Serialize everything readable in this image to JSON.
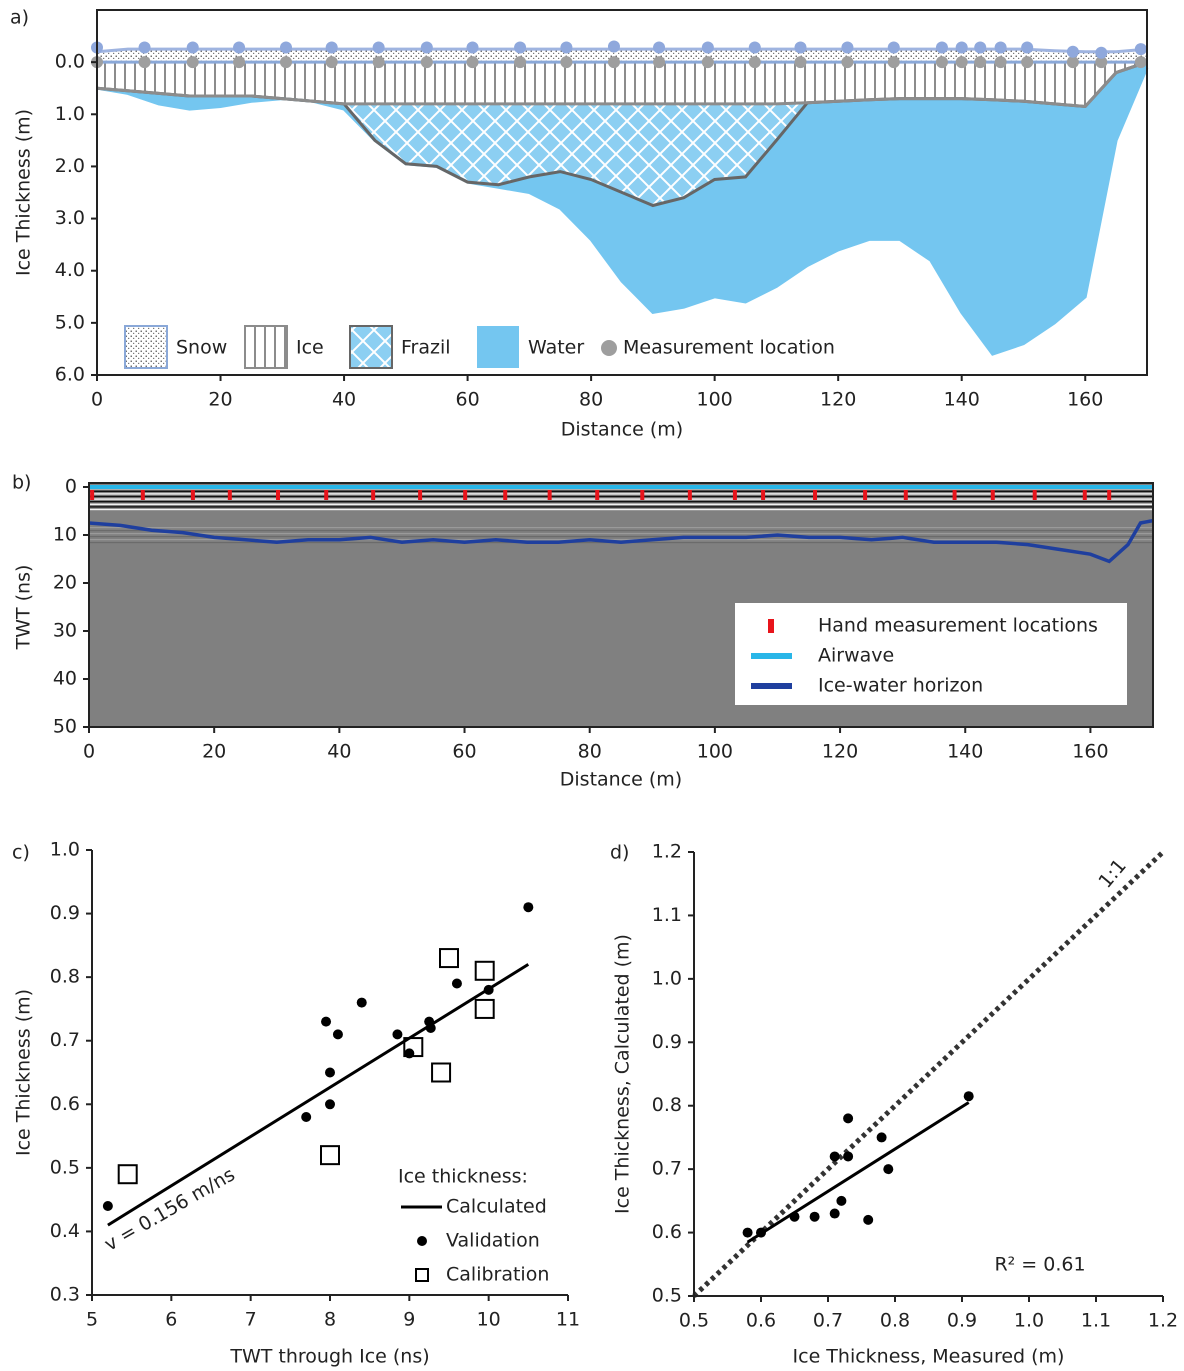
{
  "chart_data": [
    {
      "type": "area",
      "panel": "a)",
      "xlabel": "Distance (m)",
      "ylabel": "Ice Thickness (m)",
      "y_inverted": true,
      "xlim": [
        0,
        170
      ],
      "ylim": [
        -1,
        6
      ],
      "xticks": [
        0,
        20,
        40,
        60,
        80,
        100,
        120,
        140,
        160
      ],
      "yticks": [
        {
          "value": 0,
          "label": "0.0"
        },
        {
          "value": 1,
          "label": "1.0"
        },
        {
          "value": 2,
          "label": "2.0"
        },
        {
          "value": 3,
          "label": "3.0"
        },
        {
          "value": 4,
          "label": "4.0"
        },
        {
          "value": 5,
          "label": "5.0"
        },
        {
          "value": 6,
          "label": "6.0"
        }
      ],
      "x": [
        0,
        5,
        10,
        15,
        20,
        25,
        30,
        35,
        40,
        45,
        50,
        55,
        60,
        65,
        70,
        75,
        80,
        85,
        90,
        95,
        100,
        105,
        110,
        115,
        120,
        125,
        130,
        135,
        140,
        145,
        150,
        155,
        160,
        165,
        170
      ],
      "surface": [
        -0.2,
        -0.25,
        -0.25,
        -0.25,
        -0.25,
        -0.25,
        -0.25,
        -0.25,
        -0.25,
        -0.25,
        -0.25,
        -0.25,
        -0.25,
        -0.25,
        -0.25,
        -0.25,
        -0.25,
        -0.25,
        -0.25,
        -0.25,
        -0.25,
        -0.25,
        -0.25,
        -0.25,
        -0.25,
        -0.25,
        -0.25,
        -0.25,
        -0.25,
        -0.25,
        -0.25,
        -0.22,
        -0.2,
        -0.2,
        -0.25
      ],
      "surface_color": "#9fb4e0",
      "series": [
        {
          "name": "Snow",
          "color": "#ffffff",
          "edge": "#8aa8d8",
          "values": [
            0,
            0,
            0,
            0,
            0,
            0,
            0,
            0,
            0,
            0,
            0,
            0,
            0,
            0,
            0,
            0,
            0,
            0,
            0,
            0,
            0,
            0,
            0,
            0,
            0,
            0,
            0,
            0,
            0,
            0,
            0,
            0,
            0,
            0,
            0
          ]
        },
        {
          "name": "Ice",
          "color": "#ffffff",
          "edge": "#8c8c8c",
          "values": [
            0.5,
            0.55,
            0.6,
            0.65,
            0.65,
            0.65,
            0.7,
            0.75,
            0.8,
            0.8,
            0.8,
            0.8,
            0.8,
            0.8,
            0.8,
            0.8,
            0.8,
            0.8,
            0.8,
            0.8,
            0.8,
            0.8,
            0.8,
            0.78,
            0.75,
            0.72,
            0.7,
            0.7,
            0.7,
            0.72,
            0.75,
            0.8,
            0.85,
            0.2,
            0.0
          ]
        },
        {
          "name": "Frazil",
          "color": "#8ccff2",
          "edge": "#666666",
          "values": [
            0.5,
            0.55,
            0.6,
            0.65,
            0.65,
            0.65,
            0.7,
            0.75,
            0.8,
            1.5,
            1.95,
            2.0,
            2.3,
            2.35,
            2.2,
            2.1,
            2.25,
            2.5,
            2.75,
            2.6,
            2.25,
            2.2,
            1.5,
            0.78,
            0.75,
            0.72,
            0.7,
            0.7,
            0.7,
            0.72,
            0.75,
            0.8,
            0.85,
            0.2,
            0.0
          ]
        },
        {
          "name": "Water",
          "color": "#74c6f0",
          "edge": "#74c6f0",
          "values": [
            0.5,
            0.6,
            0.8,
            0.9,
            0.85,
            0.75,
            0.7,
            0.75,
            0.9,
            1.5,
            1.95,
            2.0,
            2.3,
            2.4,
            2.5,
            2.8,
            3.4,
            4.2,
            4.8,
            4.7,
            4.5,
            4.6,
            4.3,
            3.9,
            3.6,
            3.4,
            3.4,
            3.8,
            4.8,
            5.6,
            5.4,
            5.0,
            4.5,
            1.5,
            0.1
          ]
        }
      ],
      "measurement": {
        "name": "Measurement location",
        "color": "#9e9e9e",
        "snow_color": "#8fa8dc",
        "x": [
          0,
          7.7,
          15.5,
          23,
          30.6,
          38,
          45.6,
          53.4,
          60.8,
          68.5,
          76,
          83.7,
          91,
          98.9,
          106.5,
          113.9,
          121.5,
          129,
          136.8,
          140,
          143,
          146.3,
          150.6,
          158,
          162.6,
          169
        ],
        "snow": [
          -0.28,
          -0.28,
          -0.28,
          -0.28,
          -0.28,
          -0.28,
          -0.28,
          -0.28,
          -0.28,
          -0.28,
          -0.28,
          -0.3,
          -0.28,
          -0.28,
          -0.28,
          -0.28,
          -0.28,
          -0.28,
          -0.28,
          -0.28,
          -0.28,
          -0.28,
          -0.28,
          -0.2,
          -0.18,
          -0.25
        ],
        "ice": [
          0,
          0,
          0,
          0,
          0,
          0,
          0,
          0,
          0,
          0,
          0,
          0,
          0,
          0,
          0,
          0,
          0,
          0,
          0,
          0,
          0,
          0,
          0,
          0,
          0,
          0
        ]
      }
    },
    {
      "type": "line",
      "panel": "b)",
      "xlabel": "Distance (m)",
      "ylabel": "TWT (ns)",
      "y_inverted": true,
      "xlim": [
        0,
        170
      ],
      "ylim": [
        0,
        50
      ],
      "xticks": [
        0,
        20,
        40,
        60,
        80,
        100,
        120,
        140,
        160
      ],
      "yticks": [
        0,
        10,
        20,
        30,
        40,
        50
      ],
      "series": [
        {
          "name": "Hand measurement locations",
          "color": "#e8141b",
          "x": [
            0.5,
            8.6,
            16.6,
            22.5,
            30.2,
            37.9,
            45.4,
            52.9,
            60.1,
            66.5,
            73.6,
            81.2,
            88.4,
            96,
            103.2,
            107.7,
            116,
            124,
            130.5,
            138.3,
            144.4,
            151.1,
            159.1,
            163
          ]
        },
        {
          "name": "Airwave",
          "color": "#29b6e8",
          "x": [
            0,
            170
          ],
          "values": [
            0,
            0
          ]
        },
        {
          "name": "Ice-water horizon",
          "color": "#1f3f9e",
          "x": [
            0,
            5,
            10,
            15,
            20,
            25,
            30,
            35,
            40,
            45,
            50,
            55,
            60,
            65,
            70,
            75,
            80,
            85,
            90,
            95,
            100,
            105,
            110,
            115,
            120,
            125,
            130,
            135,
            140,
            145,
            150,
            155,
            160,
            163,
            166,
            168,
            170
          ],
          "values": [
            7.5,
            8,
            9,
            9.5,
            10.5,
            11,
            11.5,
            11,
            11,
            10.5,
            11.5,
            11,
            11.5,
            11,
            11.5,
            11.5,
            11,
            11.5,
            11,
            10.5,
            10.5,
            10.5,
            10,
            10.5,
            10.5,
            11,
            10.5,
            11.5,
            11.5,
            11.5,
            12,
            13,
            14,
            15.5,
            12,
            7.5,
            7
          ]
        }
      ]
    },
    {
      "type": "scatter",
      "panel": "c)",
      "xlabel": "TWT through Ice (ns)",
      "ylabel": "Ice Thickness (m)",
      "xlim": [
        5,
        11
      ],
      "ylim": [
        0.3,
        1.0
      ],
      "xticks": [
        5,
        6,
        7,
        8,
        9,
        10,
        11
      ],
      "yticks": [
        0.3,
        0.4,
        0.5,
        0.6,
        0.7,
        0.8,
        0.9,
        {
          "value": 1,
          "label": "1.0"
        }
      ],
      "legend": true,
      "legend_title": "Ice thickness:",
      "annotations": [
        "v = 0.156 m/ns"
      ],
      "series": [
        {
          "name": "Calculated",
          "mode": "line",
          "color": "#000000",
          "x": [
            5.2,
            10.5
          ],
          "values": [
            0.41,
            0.82
          ]
        },
        {
          "name": "Validation",
          "marker": "dot",
          "color": "#000000",
          "x": [
            5.2,
            7.7,
            7.95,
            8.0,
            8.0,
            8.1,
            8.4,
            8.85,
            9.0,
            9.25,
            9.27,
            9.6,
            10.0,
            10.5
          ],
          "values": [
            0.44,
            0.58,
            0.73,
            0.6,
            0.65,
            0.71,
            0.76,
            0.71,
            0.68,
            0.73,
            0.72,
            0.79,
            0.78,
            0.91
          ]
        },
        {
          "name": "Calibration",
          "marker": "square",
          "color": "#000000",
          "x": [
            5.45,
            8.0,
            9.05,
            9.4,
            9.5,
            9.95,
            9.95
          ],
          "values": [
            0.49,
            0.52,
            0.69,
            0.65,
            0.83,
            0.75,
            0.81
          ]
        }
      ]
    },
    {
      "type": "scatter",
      "panel": "d)",
      "xlabel": "Ice Thickness, Measured (m)",
      "ylabel": "Ice Thickness, Calculated (m)",
      "xlim": [
        0.5,
        1.2
      ],
      "ylim": [
        0.5,
        1.2
      ],
      "xticks": [
        0.5,
        0.6,
        0.7,
        0.8,
        0.9,
        {
          "value": 1,
          "label": "1.0"
        },
        1.1,
        1.2
      ],
      "yticks": [
        0.5,
        0.6,
        0.7,
        0.8,
        0.9,
        {
          "value": 1,
          "label": "1.0"
        },
        1.1,
        1.2
      ],
      "legend": false,
      "annotations": [
        "R² = 0.61"
      ],
      "series": [
        {
          "name": "1:1",
          "mode": "line",
          "style": "dotted",
          "color": "#333333",
          "x": [
            0.5,
            1.2
          ],
          "values": [
            0.5,
            1.2
          ]
        },
        {
          "mode": "line",
          "color": "#000000",
          "x": [
            0.58,
            0.91
          ],
          "values": [
            0.585,
            0.805
          ]
        },
        {
          "marker": "dot",
          "color": "#000000",
          "x": [
            0.58,
            0.6,
            0.65,
            0.68,
            0.71,
            0.71,
            0.72,
            0.73,
            0.73,
            0.76,
            0.78,
            0.79,
            0.91
          ],
          "values": [
            0.6,
            0.6,
            0.625,
            0.625,
            0.72,
            0.63,
            0.65,
            0.78,
            0.72,
            0.62,
            0.75,
            0.7,
            0.815
          ]
        }
      ]
    }
  ]
}
